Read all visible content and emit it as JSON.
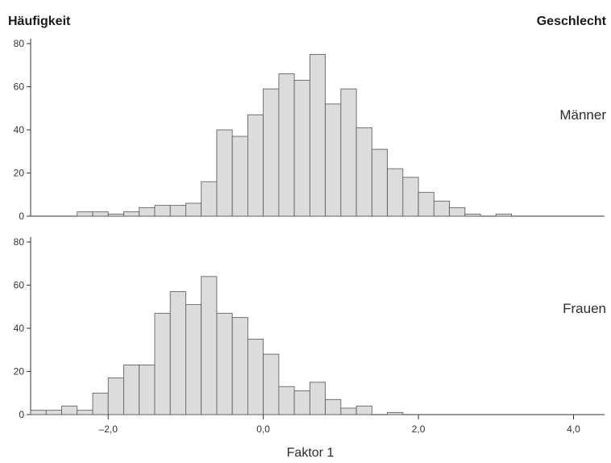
{
  "header": {
    "ylabel": "Häufigkeit",
    "group_label": "Geschlecht"
  },
  "chart_data": [
    {
      "type": "bar",
      "title": "",
      "panel_label": "Männer",
      "xlabel": "",
      "ylabel": "Häufigkeit",
      "ylim": [
        0,
        80
      ],
      "xlim": [
        -3.0,
        4.4
      ],
      "bin_width": 0.2,
      "yticks": [
        0,
        20,
        40,
        60,
        80
      ],
      "xtick_labels": [],
      "bar_color": "#dcdcdc",
      "bins": [
        {
          "x": -2.3,
          "y": 2
        },
        {
          "x": -2.1,
          "y": 2
        },
        {
          "x": -1.9,
          "y": 1
        },
        {
          "x": -1.7,
          "y": 2
        },
        {
          "x": -1.5,
          "y": 4
        },
        {
          "x": -1.3,
          "y": 5
        },
        {
          "x": -1.1,
          "y": 5
        },
        {
          "x": -0.9,
          "y": 6
        },
        {
          "x": -0.7,
          "y": 16
        },
        {
          "x": -0.5,
          "y": 40
        },
        {
          "x": -0.3,
          "y": 37
        },
        {
          "x": -0.1,
          "y": 47
        },
        {
          "x": 0.1,
          "y": 59
        },
        {
          "x": 0.3,
          "y": 66
        },
        {
          "x": 0.5,
          "y": 63
        },
        {
          "x": 0.7,
          "y": 75
        },
        {
          "x": 0.9,
          "y": 52
        },
        {
          "x": 1.1,
          "y": 59
        },
        {
          "x": 1.3,
          "y": 41
        },
        {
          "x": 1.5,
          "y": 31
        },
        {
          "x": 1.7,
          "y": 22
        },
        {
          "x": 1.9,
          "y": 18
        },
        {
          "x": 2.1,
          "y": 11
        },
        {
          "x": 2.3,
          "y": 7
        },
        {
          "x": 2.5,
          "y": 4
        },
        {
          "x": 2.7,
          "y": 1
        },
        {
          "x": 3.1,
          "y": 1
        }
      ]
    },
    {
      "type": "bar",
      "title": "",
      "panel_label": "Frauen",
      "xlabel": "Faktor 1",
      "ylabel": "Häufigkeit",
      "ylim": [
        0,
        80
      ],
      "xlim": [
        -3.0,
        4.4
      ],
      "bin_width": 0.2,
      "yticks": [
        0,
        20,
        40,
        60,
        80
      ],
      "xticks": [
        -2.0,
        0.0,
        2.0,
        4.0
      ],
      "xtick_labels": [
        "–2,0",
        "0,0",
        "2,0",
        "4,0"
      ],
      "bar_color": "#dcdcdc",
      "bins": [
        {
          "x": -2.9,
          "y": 2
        },
        {
          "x": -2.7,
          "y": 2
        },
        {
          "x": -2.5,
          "y": 4
        },
        {
          "x": -2.3,
          "y": 2
        },
        {
          "x": -2.1,
          "y": 10
        },
        {
          "x": -1.9,
          "y": 17
        },
        {
          "x": -1.7,
          "y": 23
        },
        {
          "x": -1.5,
          "y": 23
        },
        {
          "x": -1.3,
          "y": 47
        },
        {
          "x": -1.1,
          "y": 57
        },
        {
          "x": -0.9,
          "y": 51
        },
        {
          "x": -0.7,
          "y": 64
        },
        {
          "x": -0.5,
          "y": 47
        },
        {
          "x": -0.3,
          "y": 45
        },
        {
          "x": -0.1,
          "y": 35
        },
        {
          "x": 0.1,
          "y": 28
        },
        {
          "x": 0.3,
          "y": 13
        },
        {
          "x": 0.5,
          "y": 11
        },
        {
          "x": 0.7,
          "y": 15
        },
        {
          "x": 0.9,
          "y": 7
        },
        {
          "x": 1.1,
          "y": 3
        },
        {
          "x": 1.3,
          "y": 4
        },
        {
          "x": 1.7,
          "y": 1
        }
      ]
    }
  ]
}
